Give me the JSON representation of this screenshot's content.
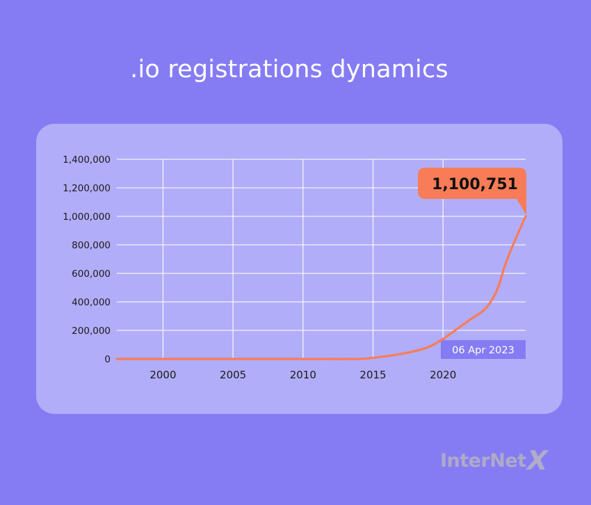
{
  "page": {
    "title": ".io registrations dynamics"
  },
  "logo": {
    "text": "InterNet",
    "accent": "X"
  },
  "colors": {
    "background": "#857cf4",
    "card": "#b2adf8",
    "line": "#f87c57",
    "callout": "#f87c57",
    "date_badge": "#857cf4",
    "grid": "#ffffff"
  },
  "chart_data": {
    "type": "line",
    "title": ".io registrations dynamics",
    "xlabel": "",
    "ylabel": "",
    "x_ticks": [
      2000,
      2005,
      2010,
      2015,
      2020
    ],
    "y_ticks": [
      "0",
      "200,000",
      "400,000",
      "600,000",
      "800,000",
      "1,000,000",
      "1,200,000",
      "1,400,000"
    ],
    "xlim": [
      1996.7,
      2025.9
    ],
    "ylim": [
      0,
      1400000
    ],
    "grid": true,
    "series": [
      {
        "x": [
          1996.7,
          2010,
          2014,
          2015,
          2016,
          2017,
          2018,
          2019,
          2020,
          2021,
          2022,
          2023,
          2023.7,
          2024.1,
          2024.4,
          2025,
          2025.9
        ],
        "y": [
          0,
          0,
          0,
          8000,
          20000,
          35000,
          55000,
          85000,
          140000,
          210000,
          280000,
          350000,
          450000,
          550000,
          650000,
          800000,
          1000000
        ]
      }
    ],
    "annotations": [
      {
        "text": "1,100,751"
      },
      {
        "text": "06 Apr 2023"
      }
    ]
  }
}
